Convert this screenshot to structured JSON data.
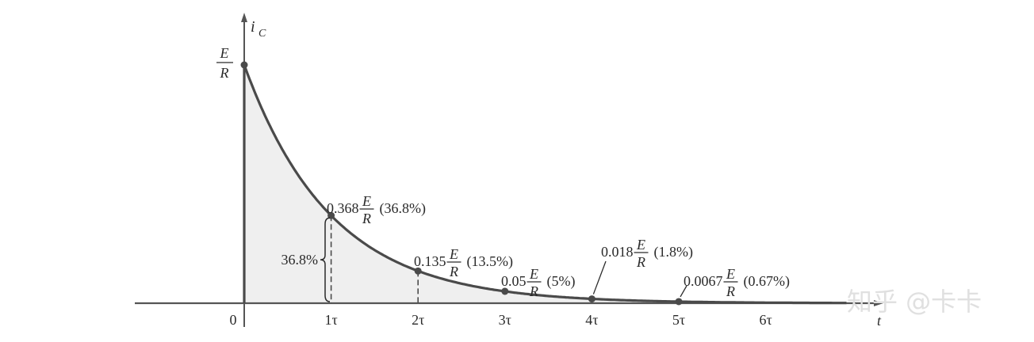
{
  "chart_data": {
    "type": "line",
    "title": "",
    "xlabel": "t",
    "ylabel": "i_C",
    "ylabel_main": "i",
    "ylabel_sub": "C",
    "y_max_label": {
      "num": "E",
      "den": "R"
    },
    "x_ticks": [
      "0",
      "1τ",
      "2τ",
      "3τ",
      "4τ",
      "5τ",
      "6τ"
    ],
    "xlim_tau": [
      0,
      7
    ],
    "ylim_fraction_of_E_over_R": [
      0,
      1
    ],
    "curve": "exponential decay i_C = (E/R)·e^(-t/τ)",
    "points": [
      {
        "t_tau": 0,
        "value": 1.0
      },
      {
        "t_tau": 1,
        "value": 0.368,
        "coef": "0.368",
        "num": "E",
        "den": "R",
        "pct": "(36.8%)"
      },
      {
        "t_tau": 2,
        "value": 0.135,
        "coef": "0.135",
        "num": "E",
        "den": "R",
        "pct": "(13.5%)"
      },
      {
        "t_tau": 3,
        "value": 0.05,
        "coef": "0.05",
        "num": "E",
        "den": "R",
        "pct": "(5%)"
      },
      {
        "t_tau": 4,
        "value": 0.018,
        "coef": "0.018",
        "num": "E",
        "den": "R",
        "pct": "(1.8%)"
      },
      {
        "t_tau": 5,
        "value": 0.0067,
        "coef": "0.0067",
        "num": "E",
        "den": "R",
        "pct": "(0.67%)"
      }
    ],
    "brace_label": "36.8%",
    "colors": {
      "curve": "#4a4a4a",
      "fill": "#efefef",
      "axis": "#555555"
    }
  },
  "watermark": "知乎 @卡卡"
}
